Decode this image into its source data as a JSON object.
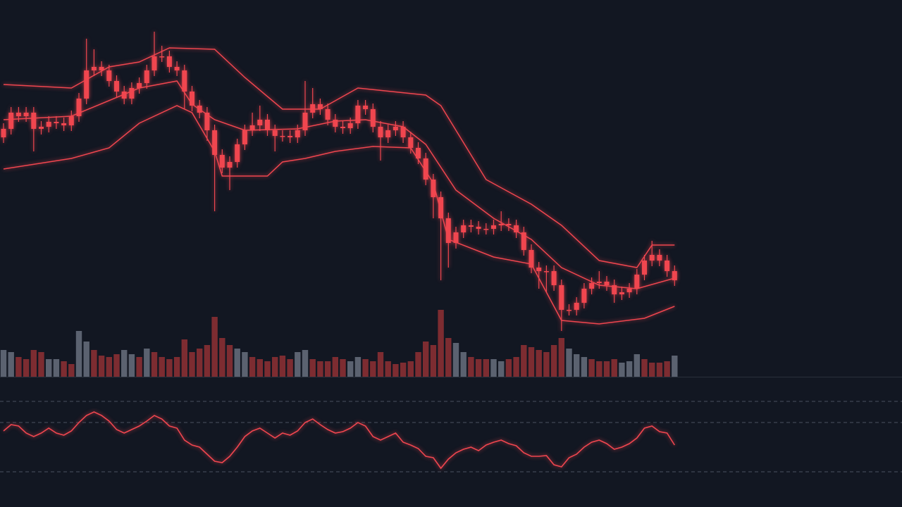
{
  "chart_data": {
    "type": "candlestick",
    "color": "#f0464f",
    "ylim": [
      0,
      500
    ],
    "open": [
      345,
      357,
      380,
      375,
      380,
      357,
      360,
      367,
      365,
      362,
      375,
      400,
      440,
      445,
      440,
      425,
      410,
      400,
      415,
      422,
      440,
      460,
      460,
      445,
      440,
      410,
      390,
      380,
      355,
      320,
      302,
      310,
      335,
      355,
      362,
      370,
      355,
      347,
      347,
      345,
      355,
      380,
      392,
      385,
      370,
      360,
      358,
      365,
      390,
      385,
      360,
      345,
      355,
      360,
      345,
      330,
      315,
      285,
      260,
      230,
      195,
      210,
      220,
      218,
      215,
      215,
      220,
      222,
      220,
      210,
      185,
      160,
      155,
      155,
      135,
      100,
      100,
      110,
      130,
      138,
      140,
      135,
      122,
      125,
      130,
      150,
      170,
      178,
      170,
      155
    ],
    "high": [
      365,
      388,
      388,
      388,
      388,
      368,
      375,
      375,
      373,
      383,
      408,
      485,
      470,
      453,
      448,
      433,
      418,
      423,
      430,
      448,
      495,
      475,
      468,
      453,
      448,
      418,
      398,
      388,
      363,
      328,
      318,
      343,
      363,
      380,
      390,
      378,
      363,
      355,
      355,
      363,
      425,
      415,
      400,
      393,
      378,
      368,
      373,
      398,
      398,
      393,
      368,
      363,
      368,
      368,
      353,
      338,
      323,
      293,
      268,
      238,
      218,
      228,
      228,
      226,
      223,
      228,
      240,
      230,
      228,
      218,
      193,
      168,
      163,
      163,
      143,
      108,
      118,
      138,
      146,
      155,
      148,
      143,
      133,
      138,
      158,
      178,
      198,
      186,
      178,
      163
    ],
    "low": [
      337,
      349,
      367,
      367,
      325,
      349,
      352,
      357,
      354,
      354,
      367,
      392,
      432,
      432,
      417,
      402,
      392,
      392,
      407,
      414,
      432,
      452,
      437,
      432,
      385,
      382,
      372,
      340,
      240,
      294,
      270,
      302,
      327,
      347,
      354,
      347,
      325,
      339,
      337,
      337,
      347,
      372,
      377,
      362,
      352,
      350,
      350,
      357,
      377,
      352,
      312,
      337,
      347,
      337,
      322,
      307,
      277,
      230,
      142,
      160,
      187,
      202,
      210,
      207,
      207,
      207,
      212,
      212,
      202,
      177,
      152,
      130,
      125,
      127,
      70,
      92,
      92,
      102,
      122,
      130,
      127,
      110,
      114,
      117,
      122,
      142,
      162,
      162,
      147,
      134
    ],
    "close": [
      357,
      380,
      375,
      380,
      357,
      360,
      367,
      365,
      362,
      375,
      400,
      440,
      445,
      440,
      425,
      410,
      400,
      415,
      422,
      440,
      460,
      460,
      445,
      440,
      410,
      390,
      380,
      355,
      320,
      302,
      310,
      335,
      355,
      362,
      370,
      355,
      347,
      347,
      345,
      355,
      380,
      392,
      385,
      370,
      360,
      358,
      365,
      390,
      385,
      360,
      345,
      355,
      360,
      345,
      330,
      315,
      285,
      260,
      230,
      195,
      210,
      220,
      218,
      215,
      215,
      220,
      222,
      220,
      210,
      185,
      160,
      155,
      155,
      135,
      100,
      100,
      110,
      130,
      138,
      140,
      135,
      122,
      125,
      130,
      150,
      170,
      178,
      170,
      155,
      142
    ],
    "bands": [
      {
        "color": "#f0464f",
        "x": [
          0,
          9,
          14,
          18,
          22,
          28,
          32,
          37,
          42,
          47,
          56,
          58,
          64,
          70,
          74,
          79,
          84,
          86,
          89
        ],
        "values": [
          420,
          415,
          445,
          452,
          472,
          470,
          430,
          385,
          385,
          415,
          405,
          390,
          285,
          250,
          220,
          170,
          160,
          192,
          192
        ]
      },
      {
        "color": "#f0464f",
        "x": [
          0,
          9,
          18,
          23,
          25,
          28,
          32,
          39,
          44,
          48,
          53,
          56,
          60,
          65,
          70,
          74,
          79,
          84,
          89
        ],
        "values": [
          370,
          375,
          415,
          425,
          392,
          370,
          355,
          357,
          368,
          370,
          360,
          335,
          270,
          230,
          200,
          160,
          135,
          130,
          145
        ]
      },
      {
        "color": "#f0464f",
        "x": [
          0,
          9,
          14,
          18,
          23,
          25,
          28,
          29,
          35,
          37,
          40,
          44,
          49,
          54,
          57,
          59,
          65,
          70,
          74,
          79,
          85,
          89
        ],
        "values": [
          300,
          315,
          330,
          365,
          390,
          380,
          325,
          290,
          290,
          310,
          315,
          325,
          332,
          330,
          280,
          200,
          175,
          165,
          85,
          80,
          88,
          105
        ]
      }
    ],
    "volume": {
      "ylim": [
        0,
        100
      ],
      "values": [
        38,
        35,
        28,
        25,
        38,
        35,
        25,
        25,
        22,
        18,
        65,
        50,
        38,
        30,
        28,
        32,
        38,
        32,
        28,
        40,
        35,
        28,
        25,
        28,
        53,
        35,
        40,
        45,
        85,
        55,
        45,
        40,
        35,
        28,
        25,
        22,
        28,
        30,
        25,
        35,
        38,
        25,
        22,
        22,
        28,
        25,
        22,
        28,
        25,
        22,
        35,
        22,
        18,
        20,
        22,
        35,
        50,
        45,
        95,
        55,
        48,
        35,
        28,
        25,
        25,
        25,
        22,
        25,
        28,
        45,
        42,
        38,
        35,
        45,
        55,
        40,
        32,
        28,
        25,
        22,
        22,
        25,
        20,
        22,
        32,
        25,
        20,
        20,
        22,
        30
      ],
      "colors": [
        "#5b6270",
        "#5b6270",
        "#7d2c31",
        "#7d2c31",
        "#7d2c31",
        "#7d2c31",
        "#5b6270",
        "#5b6270",
        "#7d2c31",
        "#7d2c31",
        "#5b6270",
        "#5b6270",
        "#7d2c31",
        "#7d2c31",
        "#7d2c31",
        "#7d2c31",
        "#5b6270",
        "#5b6270",
        "#7d2c31",
        "#5b6270",
        "#7d2c31",
        "#7d2c31",
        "#7d2c31",
        "#7d2c31",
        "#7d2c31",
        "#7d2c31",
        "#7d2c31",
        "#7d2c31",
        "#7d2c31",
        "#7d2c31",
        "#7d2c31",
        "#5b6270",
        "#5b6270",
        "#7d2c31",
        "#7d2c31",
        "#7d2c31",
        "#7d2c31",
        "#7d2c31",
        "#7d2c31",
        "#5b6270",
        "#5b6270",
        "#7d2c31",
        "#7d2c31",
        "#7d2c31",
        "#7d2c31",
        "#7d2c31",
        "#5b6270",
        "#5b6270",
        "#7d2c31",
        "#7d2c31",
        "#7d2c31",
        "#7d2c31",
        "#7d2c31",
        "#7d2c31",
        "#7d2c31",
        "#7d2c31",
        "#7d2c31",
        "#7d2c31",
        "#7d2c31",
        "#7d2c31",
        "#5b6270",
        "#5b6270",
        "#7d2c31",
        "#7d2c31",
        "#7d2c31",
        "#5b6270",
        "#5b6270",
        "#7d2c31",
        "#7d2c31",
        "#7d2c31",
        "#7d2c31",
        "#7d2c31",
        "#7d2c31",
        "#7d2c31",
        "#7d2c31",
        "#5b6270",
        "#5b6270",
        "#5b6270",
        "#7d2c31",
        "#7d2c31",
        "#7d2c31",
        "#7d2c31",
        "#5b6270",
        "#5b6270",
        "#5b6270",
        "#7d2c31",
        "#7d2c31",
        "#7d2c31",
        "#7d2c31",
        "#5b6270"
      ]
    },
    "rsi": {
      "color": "#f0464f",
      "ylim": [
        0,
        160
      ],
      "levels": [
        130,
        100,
        30
      ],
      "values": [
        88,
        97,
        95,
        85,
        80,
        85,
        92,
        85,
        82,
        88,
        100,
        110,
        115,
        110,
        102,
        90,
        85,
        90,
        95,
        102,
        110,
        105,
        95,
        92,
        75,
        68,
        65,
        55,
        45,
        43,
        52,
        65,
        80,
        88,
        92,
        85,
        78,
        85,
        82,
        88,
        100,
        105,
        97,
        90,
        85,
        87,
        92,
        100,
        95,
        80,
        75,
        80,
        85,
        72,
        68,
        63,
        52,
        50,
        35,
        48,
        57,
        62,
        65,
        60,
        68,
        72,
        75,
        70,
        67,
        57,
        52,
        52,
        53,
        40,
        37,
        50,
        55,
        65,
        72,
        75,
        70,
        62,
        65,
        70,
        78,
        92,
        95,
        87,
        85,
        68
      ]
    }
  }
}
